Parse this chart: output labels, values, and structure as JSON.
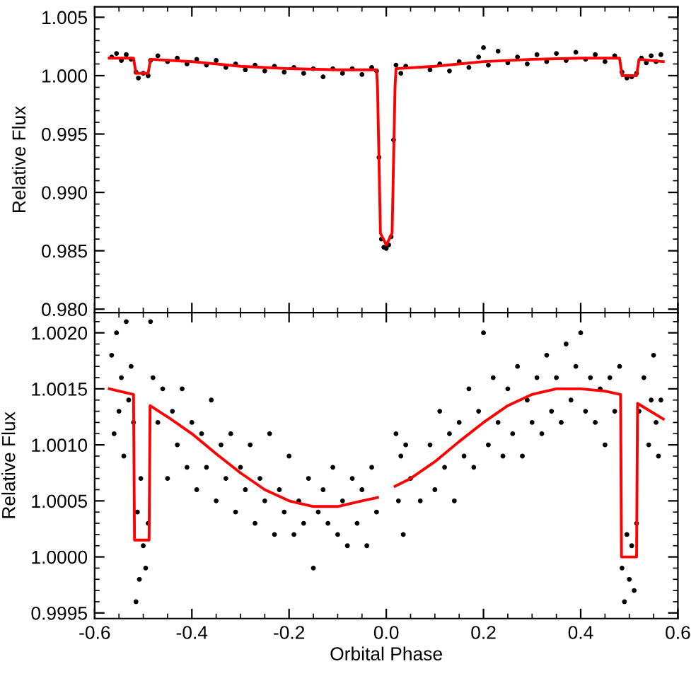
{
  "chart_data": [
    {
      "type": "scatter",
      "ylabel": "Relative Flux",
      "xlim": [
        -0.6,
        0.6
      ],
      "xticks": [
        -0.6,
        -0.4,
        -0.2,
        0.0,
        0.2,
        0.4,
        0.6
      ],
      "ylim": [
        0.9797,
        1.0059
      ],
      "yticks": [
        {
          "value": 0.98,
          "label": "0.980"
        },
        {
          "value": 0.985,
          "label": "0.985"
        },
        {
          "value": 0.99,
          "label": "0.990"
        },
        {
          "value": 0.995,
          "label": "0.995"
        },
        {
          "value": 1.0,
          "label": "1.000"
        },
        {
          "value": 1.005,
          "label": "1.005"
        }
      ],
      "tick_labels": "y",
      "series": [
        {
          "marker": "circle",
          "color": "#000000",
          "x": [
            -0.565,
            -0.555,
            -0.545,
            -0.535,
            -0.525,
            -0.515,
            -0.51,
            -0.5,
            -0.49,
            -0.485,
            -0.47,
            -0.45,
            -0.43,
            -0.41,
            -0.39,
            -0.37,
            -0.35,
            -0.33,
            -0.31,
            -0.29,
            -0.27,
            -0.25,
            -0.23,
            -0.21,
            -0.19,
            -0.17,
            -0.15,
            -0.13,
            -0.11,
            -0.09,
            -0.07,
            -0.05,
            -0.03,
            -0.02,
            -0.015,
            -0.01,
            -0.005,
            0.0,
            0.005,
            0.01,
            0.015,
            0.02,
            0.03,
            0.04,
            0.09,
            0.11,
            0.13,
            0.15,
            0.17,
            0.19,
            0.2,
            0.21,
            0.23,
            0.25,
            0.27,
            0.29,
            0.31,
            0.33,
            0.35,
            0.37,
            0.39,
            0.41,
            0.43,
            0.45,
            0.47,
            0.485,
            0.495,
            0.505,
            0.515,
            0.525,
            0.535,
            0.545,
            0.555,
            0.565
          ],
          "values": [
            1.0016,
            1.0019,
            1.0013,
            1.0018,
            1.0014,
            1.0003,
            0.9998,
            1.0002,
            1.0,
            1.0013,
            1.0017,
            1.0012,
            1.0015,
            1.001,
            1.0014,
            1.0009,
            1.0013,
            1.0007,
            1.001,
            1.0005,
            1.0009,
            1.0004,
            1.0008,
            1.0003,
            1.0007,
            1.0002,
            1.0006,
            0.9999,
            1.0006,
            1.0002,
            1.0006,
            1.0001,
            1.0007,
            1.0004,
            0.993,
            0.986,
            0.9853,
            0.9852,
            0.9855,
            0.9862,
            0.9945,
            1.0009,
            1.0002,
            1.0008,
            1.0005,
            1.001,
            1.0004,
            1.0012,
            1.0007,
            1.0016,
            1.0024,
            1.0009,
            1.0021,
            1.0011,
            1.0016,
            1.001,
            1.0018,
            1.0012,
            1.0019,
            1.0013,
            1.002,
            1.0014,
            1.0018,
            1.0012,
            1.0017,
            1.0003,
            0.9998,
            0.9999,
            1.0002,
            1.0015,
            1.0011,
            1.0017,
            1.0012,
            1.0018
          ]
        },
        {
          "type": "line",
          "color": "#ff0000",
          "x": [
            -0.57,
            -0.52,
            -0.515,
            -0.49,
            -0.485,
            -0.4,
            -0.3,
            -0.2,
            -0.1,
            -0.02,
            -0.018,
            -0.012,
            0.0,
            0.012,
            0.018,
            0.02,
            0.1,
            0.2,
            0.3,
            0.4,
            0.48,
            0.485,
            0.515,
            0.52,
            0.57
          ],
          "values": [
            1.0015,
            1.0015,
            1.0002,
            1.0002,
            1.0014,
            1.0012,
            1.0008,
            1.0006,
            1.0005,
            1.0005,
            0.999,
            0.9865,
            0.9855,
            0.9865,
            0.999,
            1.0006,
            1.0008,
            1.0012,
            1.0014,
            1.0015,
            1.0015,
            1.0,
            1.0,
            1.0014,
            1.0012
          ]
        }
      ]
    },
    {
      "type": "scatter",
      "ylabel": "Relative Flux",
      "xlabel": "Orbital Phase",
      "xlim": [
        -0.6,
        0.6
      ],
      "xticks": [
        {
          "value": -0.6,
          "label": "-0.6"
        },
        {
          "value": -0.4,
          "label": "-0.4"
        },
        {
          "value": -0.2,
          "label": "-0.2"
        },
        {
          "value": 0.0,
          "label": "0.0"
        },
        {
          "value": 0.2,
          "label": "0.2"
        },
        {
          "value": 0.4,
          "label": "0.4"
        },
        {
          "value": 0.6,
          "label": "0.6"
        }
      ],
      "ylim": [
        0.99945,
        1.00218
      ],
      "yticks": [
        {
          "value": 0.9995,
          "label": "0.9995"
        },
        {
          "value": 1.0,
          "label": "1.0000"
        },
        {
          "value": 1.0005,
          "label": "1.0005"
        },
        {
          "value": 1.001,
          "label": "1.0010"
        },
        {
          "value": 1.0015,
          "label": "1.0015"
        },
        {
          "value": 1.002,
          "label": "1.0020"
        }
      ],
      "series": [
        {
          "marker": "circle",
          "color": "#000000",
          "x": [
            -0.565,
            -0.56,
            -0.555,
            -0.55,
            -0.545,
            -0.54,
            -0.535,
            -0.53,
            -0.525,
            -0.52,
            -0.515,
            -0.512,
            -0.508,
            -0.505,
            -0.5,
            -0.495,
            -0.49,
            -0.485,
            -0.48,
            -0.47,
            -0.46,
            -0.45,
            -0.44,
            -0.43,
            -0.42,
            -0.41,
            -0.4,
            -0.39,
            -0.38,
            -0.37,
            -0.36,
            -0.35,
            -0.34,
            -0.33,
            -0.32,
            -0.31,
            -0.3,
            -0.29,
            -0.28,
            -0.27,
            -0.26,
            -0.25,
            -0.24,
            -0.23,
            -0.22,
            -0.21,
            -0.2,
            -0.19,
            -0.18,
            -0.17,
            -0.16,
            -0.15,
            -0.14,
            -0.13,
            -0.12,
            -0.11,
            -0.1,
            -0.09,
            -0.08,
            -0.07,
            -0.06,
            -0.05,
            -0.04,
            -0.03,
            -0.02,
            0.02,
            0.025,
            0.03,
            0.035,
            0.04,
            0.05,
            0.07,
            0.09,
            0.1,
            0.11,
            0.12,
            0.13,
            0.14,
            0.15,
            0.16,
            0.17,
            0.18,
            0.19,
            0.2,
            0.21,
            0.22,
            0.23,
            0.24,
            0.25,
            0.26,
            0.27,
            0.28,
            0.29,
            0.3,
            0.31,
            0.32,
            0.33,
            0.34,
            0.35,
            0.36,
            0.37,
            0.38,
            0.39,
            0.4,
            0.41,
            0.42,
            0.43,
            0.44,
            0.45,
            0.46,
            0.47,
            0.48,
            0.485,
            0.49,
            0.495,
            0.5,
            0.505,
            0.51,
            0.515,
            0.52,
            0.53,
            0.54,
            0.545,
            0.55,
            0.555,
            0.56,
            0.565
          ],
          "values": [
            1.0018,
            1.0011,
            1.002,
            1.0013,
            1.0016,
            1.0009,
            1.0021,
            1.0014,
            1.0017,
            1.0012,
            0.9996,
            1.0004,
            0.9998,
            1.0007,
            1.0001,
            0.9999,
            1.0003,
            1.0021,
            1.0016,
            1.0012,
            1.0015,
            1.0007,
            1.0013,
            1.001,
            1.0015,
            1.0008,
            1.0012,
            1.0006,
            1.0011,
            1.0008,
            1.0014,
            1.0005,
            1.001,
            1.0007,
            1.0011,
            1.0004,
            1.0008,
            1.0006,
            1.001,
            1.0003,
            1.0007,
            1.0005,
            1.0011,
            1.0002,
            1.0006,
            1.0004,
            1.0009,
            1.0002,
            1.0005,
            1.0003,
            1.0007,
            0.9999,
            1.0004,
            1.0006,
            1.0003,
            1.0008,
            1.0002,
            1.0005,
            1.0001,
            1.0007,
            1.0003,
            1.0006,
            1.0001,
            1.0008,
            1.0004,
            1.0011,
            1.0005,
            1.0009,
            1.0002,
            1.001,
            1.0007,
            1.0005,
            1.001,
            1.0006,
            1.0013,
            1.0008,
            1.0011,
            1.0005,
            1.0012,
            1.0009,
            1.0015,
            1.0008,
            1.0013,
            1.002,
            1.001,
            1.0016,
            1.0012,
            1.0009,
            1.0015,
            1.0011,
            1.0017,
            1.0009,
            1.0014,
            1.0012,
            1.0016,
            1.0011,
            1.0018,
            1.0013,
            1.0016,
            1.0012,
            1.0019,
            1.0014,
            1.0017,
            1.002,
            1.0013,
            1.0016,
            1.0012,
            1.0015,
            1.001,
            1.0016,
            1.0013,
            1.0017,
            0.9999,
            0.9996,
            1.0002,
            0.9998,
            1.0001,
            0.9997,
            1.0003,
            1.0013,
            1.0016,
            1.001,
            1.0014,
            1.0018,
            1.0012,
            1.0009,
            1.0014
          ]
        },
        {
          "type": "line",
          "color": "#ff0000",
          "x": [
            -0.57,
            -0.52,
            -0.518,
            -0.488,
            -0.486,
            -0.45,
            -0.4,
            -0.35,
            -0.3,
            -0.25,
            -0.2,
            -0.15,
            -0.1,
            -0.05,
            -0.018,
            -0.0175,
            0.0,
            0.0175,
            0.018,
            0.05,
            0.1,
            0.15,
            0.2,
            0.25,
            0.3,
            0.35,
            0.4,
            0.45,
            0.482,
            0.484,
            0.515,
            0.517,
            0.57
          ],
          "values": [
            1.0015,
            1.00145,
            1.00015,
            1.00015,
            1.00135,
            1.00125,
            1.0011,
            1.00092,
            1.00075,
            1.0006,
            1.0005,
            1.00045,
            1.00045,
            1.0005,
            1.00053,
            null,
            null,
            null,
            1.00063,
            1.0007,
            1.00085,
            1.00103,
            1.0012,
            1.00135,
            1.00145,
            1.0015,
            1.0015,
            1.00148,
            1.00145,
            1.0,
            1.0,
            1.00137,
            1.00123
          ]
        }
      ]
    }
  ]
}
